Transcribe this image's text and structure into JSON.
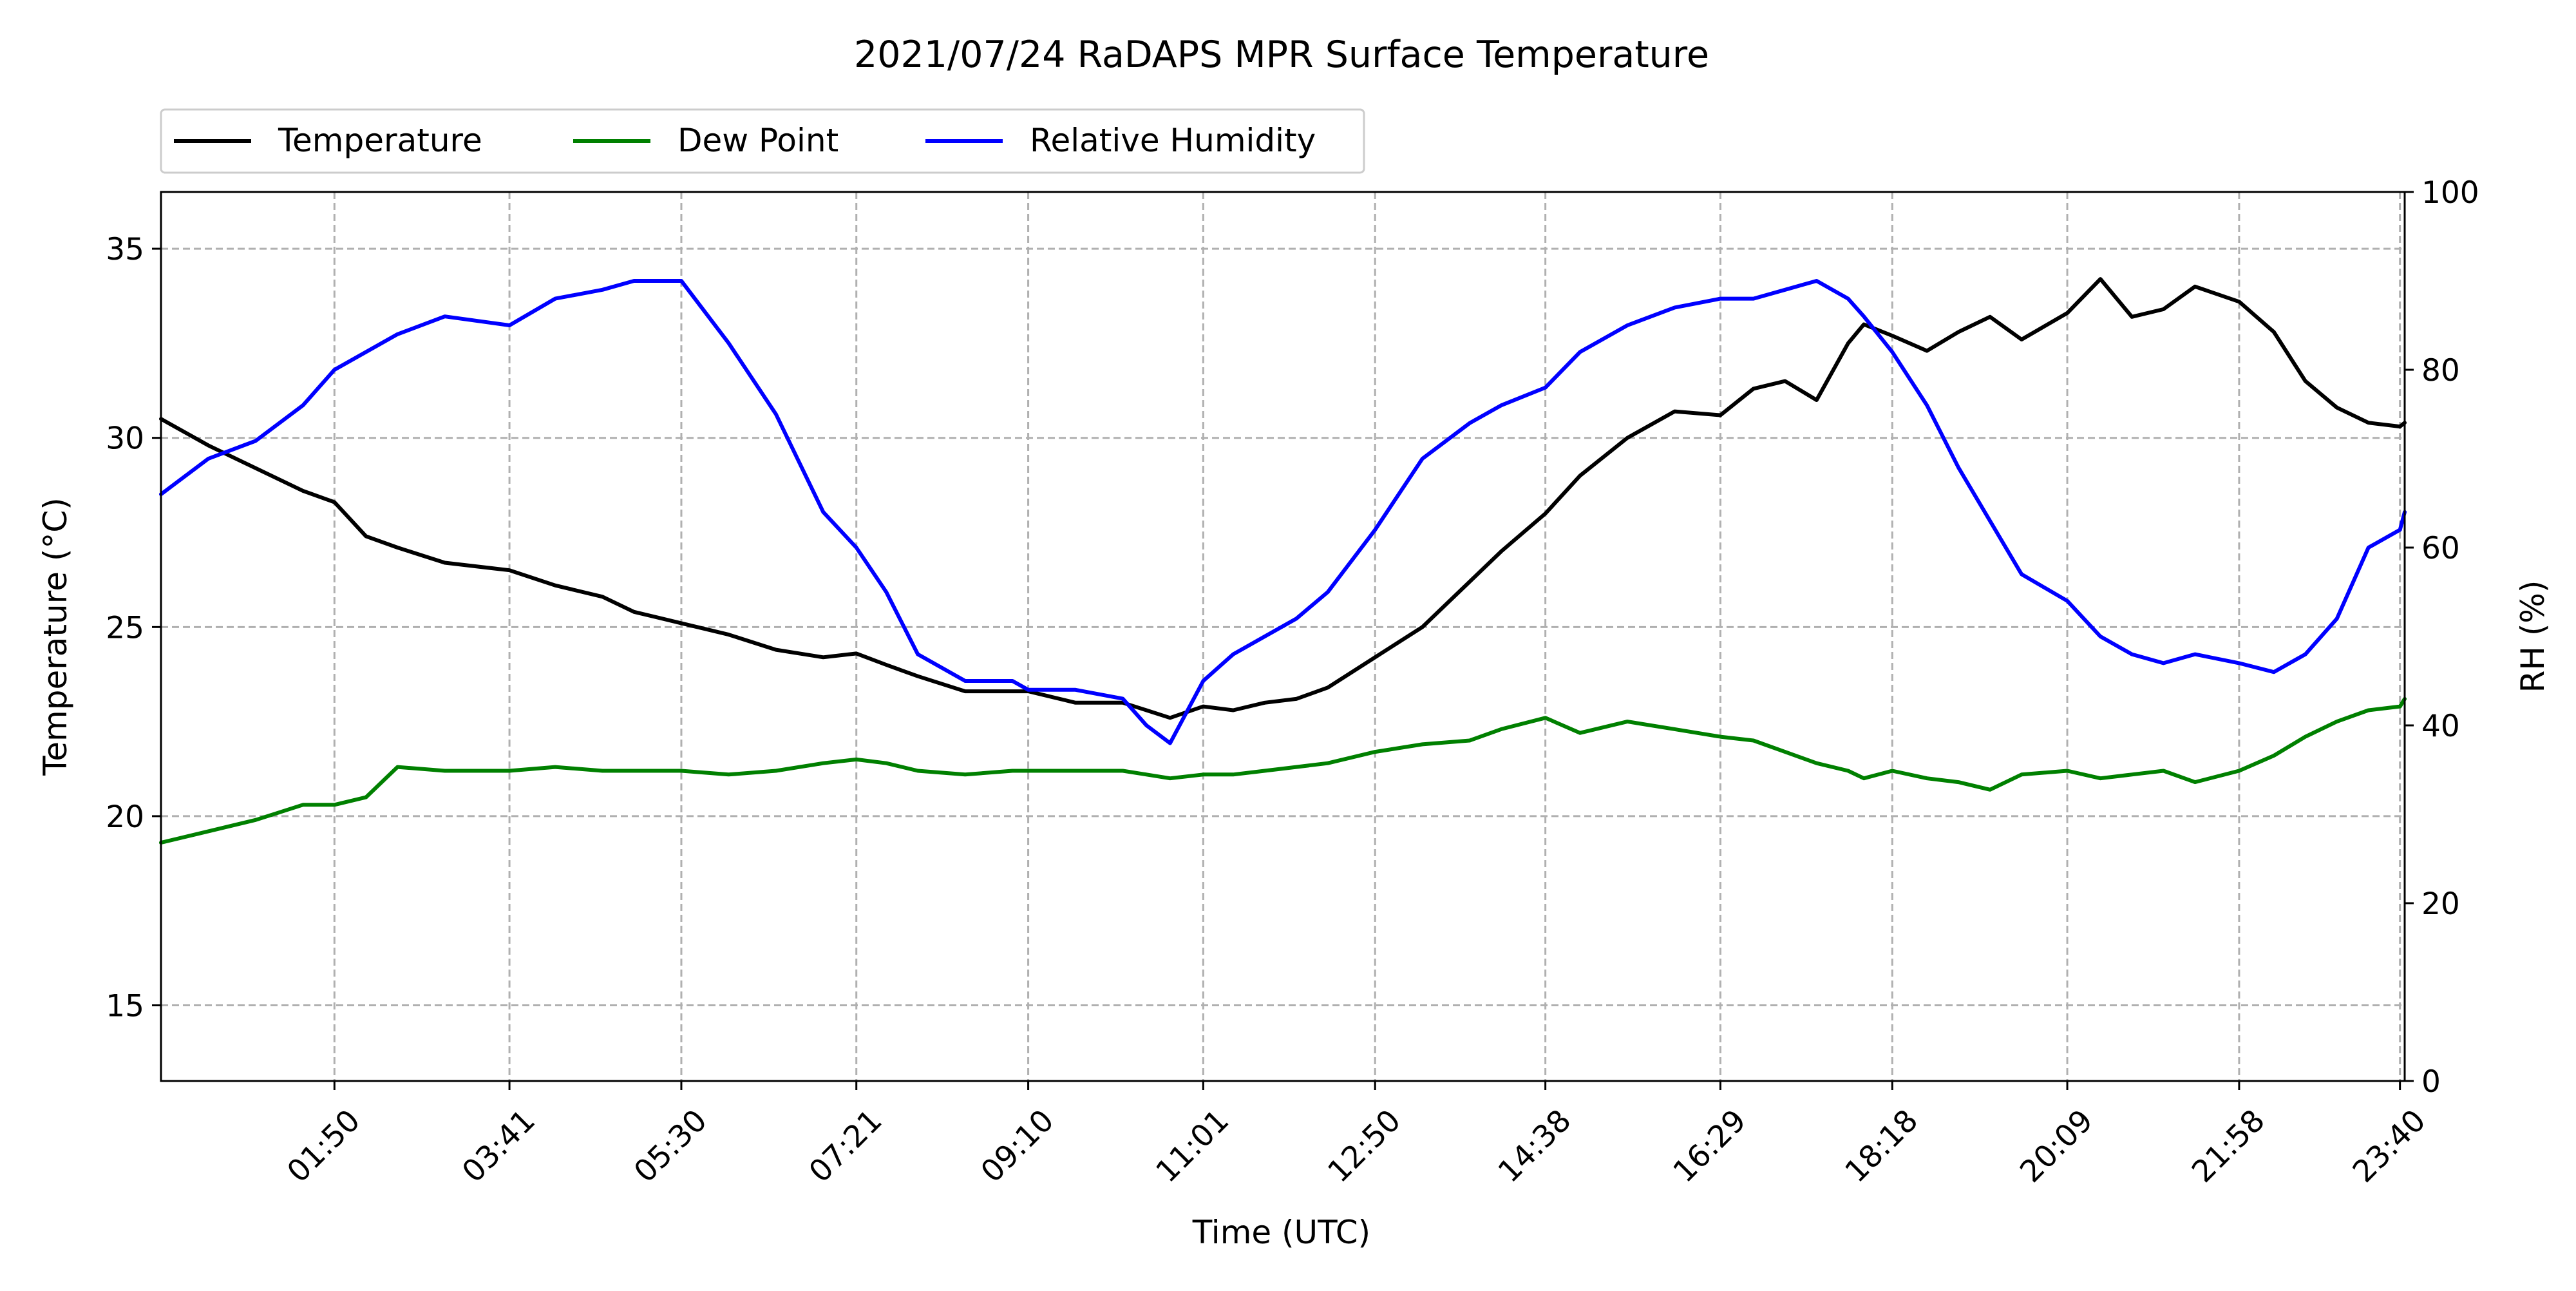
{
  "chart_data": {
    "type": "line",
    "title": "2021/07/24 RaDAPS MPR Surface Temperature",
    "xlabel": "Time (UTC)",
    "ylabel_left": "Temperature ($^\\circ$C)",
    "ylabel_right": "RH (%)",
    "xlim": [
      "00:00",
      "23:43"
    ],
    "xticks": [
      "01:50",
      "03:41",
      "05:30",
      "07:21",
      "09:10",
      "11:01",
      "12:50",
      "14:38",
      "16:29",
      "18:18",
      "20:09",
      "21:58",
      "23:40"
    ],
    "ylim_left": [
      13,
      36.5
    ],
    "yticks_left": [
      "15",
      "20",
      "25",
      "30",
      "35"
    ],
    "ylim_right": [
      0,
      100
    ],
    "yticks_right": [
      "0",
      "20",
      "40",
      "60",
      "80",
      "100"
    ],
    "grid": true,
    "legend_placement": "top-left, outside plot",
    "x": [
      "00:00",
      "00:30",
      "01:00",
      "01:30",
      "01:50",
      "02:10",
      "02:30",
      "03:00",
      "03:41",
      "04:10",
      "04:40",
      "05:00",
      "05:30",
      "06:00",
      "06:30",
      "07:00",
      "07:21",
      "07:40",
      "08:00",
      "08:30",
      "09:00",
      "09:10",
      "09:40",
      "10:10",
      "10:25",
      "10:40",
      "11:01",
      "11:20",
      "11:40",
      "12:00",
      "12:20",
      "12:50",
      "13:20",
      "13:50",
      "14:10",
      "14:38",
      "15:00",
      "15:30",
      "16:00",
      "16:29",
      "16:50",
      "17:10",
      "17:30",
      "17:50",
      "18:00",
      "18:18",
      "18:40",
      "19:00",
      "19:20",
      "19:40",
      "20:09",
      "20:30",
      "20:50",
      "21:10",
      "21:30",
      "21:58",
      "22:20",
      "22:40",
      "23:00",
      "23:20",
      "23:40",
      "23:43"
    ],
    "series": [
      {
        "name": "Temperature",
        "color": "#000000",
        "axis": "left",
        "values": [
          30.5,
          29.8,
          29.2,
          28.6,
          28.3,
          27.4,
          27.1,
          26.7,
          26.5,
          26.1,
          25.8,
          25.4,
          25.1,
          24.8,
          24.4,
          24.2,
          24.3,
          24.0,
          23.7,
          23.3,
          23.3,
          23.3,
          23.0,
          23.0,
          22.8,
          22.6,
          22.9,
          22.8,
          23.0,
          23.1,
          23.4,
          24.2,
          25.0,
          26.2,
          27.0,
          28.0,
          29.0,
          30.0,
          30.7,
          30.6,
          31.3,
          31.5,
          31.0,
          32.5,
          33.0,
          32.7,
          32.3,
          32.8,
          33.2,
          32.6,
          33.3,
          34.2,
          33.2,
          33.4,
          34.0,
          33.6,
          32.8,
          31.5,
          30.8,
          30.4,
          30.3,
          30.4
        ]
      },
      {
        "name": "Dew Point",
        "color": "#008000",
        "axis": "left",
        "values": [
          19.3,
          19.6,
          19.9,
          20.3,
          20.3,
          20.5,
          21.3,
          21.2,
          21.2,
          21.3,
          21.2,
          21.2,
          21.2,
          21.1,
          21.2,
          21.4,
          21.5,
          21.4,
          21.2,
          21.1,
          21.2,
          21.2,
          21.2,
          21.2,
          21.1,
          21.0,
          21.1,
          21.1,
          21.2,
          21.3,
          21.4,
          21.7,
          21.9,
          22.0,
          22.3,
          22.6,
          22.2,
          22.5,
          22.3,
          22.1,
          22.0,
          21.7,
          21.4,
          21.2,
          21.0,
          21.2,
          21.0,
          20.9,
          20.7,
          21.1,
          21.2,
          21.0,
          21.1,
          21.2,
          20.9,
          21.2,
          21.6,
          22.1,
          22.5,
          22.8,
          22.9,
          23.1
        ]
      },
      {
        "name": "Relative Humidity",
        "color": "#0000ff",
        "axis": "right",
        "values": [
          66,
          70,
          72,
          76,
          80,
          82,
          84,
          86,
          85,
          88,
          89,
          90,
          90,
          83,
          75,
          64,
          60,
          55,
          48,
          45,
          45,
          44,
          44,
          43,
          40,
          38,
          45,
          48,
          50,
          52,
          55,
          62,
          70,
          74,
          76,
          78,
          82,
          85,
          87,
          88,
          88,
          89,
          90,
          88,
          86,
          82,
          76,
          69,
          63,
          57,
          54,
          50,
          48,
          47,
          48,
          47,
          46,
          48,
          52,
          60,
          62,
          64
        ]
      }
    ]
  }
}
